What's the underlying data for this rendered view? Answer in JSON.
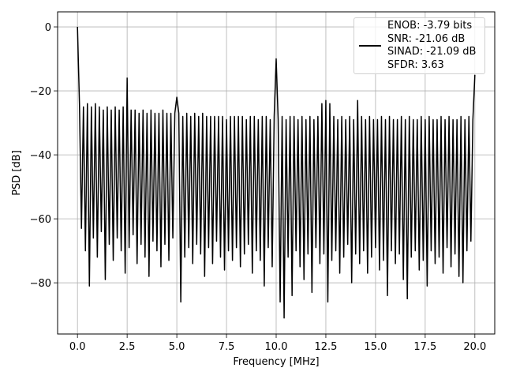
{
  "chart_data": {
    "type": "line",
    "xlabel": "Frequency [MHz]",
    "ylabel": "PSD [dB]",
    "xlim": [
      -1,
      21
    ],
    "ylim": [
      -96,
      4.7
    ],
    "xticks": [
      {
        "value": 0,
        "label": "0.0"
      },
      2.5,
      {
        "value": 5,
        "label": "5.0"
      },
      7.5,
      {
        "value": 10,
        "label": "10.0"
      },
      12.5,
      {
        "value": 15,
        "label": "15.0"
      },
      17.5,
      {
        "value": 20,
        "label": "20.0"
      }
    ],
    "yticks": [
      {
        "value": -80,
        "label": "−80"
      },
      {
        "value": -60,
        "label": "−60"
      },
      {
        "value": -40,
        "label": "−40"
      },
      {
        "value": -20,
        "label": "−20"
      },
      0
    ],
    "grid": true,
    "legend": "upper right",
    "x": [
      0,
      0.1,
      0.2,
      0.3,
      0.4,
      0.5,
      0.6,
      0.7,
      0.8,
      0.9,
      1,
      1.1,
      1.2,
      1.3,
      1.4,
      1.5,
      1.6,
      1.7,
      1.8,
      1.9,
      2,
      2.1,
      2.2,
      2.3,
      2.4,
      2.5,
      2.6,
      2.7,
      2.8,
      2.9,
      3,
      3.1,
      3.2,
      3.3,
      3.4,
      3.5,
      3.6,
      3.7,
      3.8,
      3.9,
      4,
      4.1,
      4.2,
      4.3,
      4.4,
      4.5,
      4.6,
      4.7,
      4.8,
      4.9,
      5,
      5.1,
      5.2,
      5.3,
      5.4,
      5.5,
      5.6,
      5.7,
      5.8,
      5.9,
      6,
      6.1,
      6.2,
      6.3,
      6.4,
      6.5,
      6.6,
      6.7,
      6.8,
      6.9,
      7,
      7.1,
      7.2,
      7.3,
      7.4,
      7.5,
      7.6,
      7.7,
      7.8,
      7.9,
      8,
      8.1,
      8.2,
      8.3,
      8.4,
      8.5,
      8.6,
      8.7,
      8.8,
      8.9,
      9,
      9.1,
      9.2,
      9.3,
      9.4,
      9.5,
      9.6,
      9.7,
      9.8,
      9.9,
      10,
      10.1,
      10.2,
      10.3,
      10.4,
      10.5,
      10.6,
      10.7,
      10.8,
      10.9,
      11,
      11.1,
      11.2,
      11.3,
      11.4,
      11.5,
      11.6,
      11.7,
      11.8,
      11.9,
      12,
      12.1,
      12.2,
      12.3,
      12.4,
      12.5,
      12.6,
      12.7,
      12.8,
      12.9,
      13,
      13.1,
      13.2,
      13.3,
      13.4,
      13.5,
      13.6,
      13.7,
      13.8,
      13.9,
      14,
      14.1,
      14.2,
      14.3,
      14.4,
      14.5,
      14.6,
      14.7,
      14.8,
      14.9,
      15,
      15.1,
      15.2,
      15.3,
      15.4,
      15.5,
      15.6,
      15.7,
      15.8,
      15.9,
      16,
      16.1,
      16.2,
      16.3,
      16.4,
      16.5,
      16.6,
      16.7,
      16.8,
      16.9,
      17,
      17.1,
      17.2,
      17.3,
      17.4,
      17.5,
      17.6,
      17.7,
      17.8,
      17.9,
      18,
      18.1,
      18.2,
      18.3,
      18.4,
      18.5,
      18.6,
      18.7,
      18.8,
      18.9,
      19,
      19.1,
      19.2,
      19.3,
      19.4,
      19.5,
      19.6,
      19.7,
      19.8,
      19.9,
      20
    ],
    "series": [
      {
        "name": "ENOB: -3.79 bits\nSNR: -21.06 dB\nSINAD: -21.09 dB\nSFDR: 3.63",
        "color": "#000000",
        "values": [
          0,
          -24,
          -63,
          -25,
          -70,
          -24,
          -81,
          -25,
          -66,
          -24,
          -72,
          -25,
          -64,
          -26,
          -79,
          -25,
          -68,
          -26,
          -73,
          -25,
          -66,
          -26,
          -70,
          -25,
          -77,
          -16,
          -69,
          -26,
          -65,
          -26,
          -74,
          -27,
          -68,
          -26,
          -72,
          -27,
          -78,
          -26,
          -67,
          -27,
          -70,
          -27,
          -75,
          -26,
          -68,
          -27,
          -73,
          -27,
          -66,
          -27,
          -22,
          -27,
          -86,
          -28,
          -72,
          -27,
          -69,
          -28,
          -74,
          -27,
          -68,
          -28,
          -71,
          -27,
          -78,
          -28,
          -69,
          -28,
          -74,
          -28,
          -67,
          -28,
          -72,
          -28,
          -76,
          -29,
          -70,
          -28,
          -73,
          -28,
          -69,
          -28,
          -75,
          -28,
          -71,
          -29,
          -68,
          -28,
          -77,
          -28,
          -70,
          -29,
          -73,
          -28,
          -81,
          -28,
          -69,
          -29,
          -75,
          -28,
          -10,
          -29,
          -86,
          -28,
          -91,
          -29,
          -72,
          -28,
          -84,
          -28,
          -70,
          -29,
          -75,
          -28,
          -79,
          -29,
          -71,
          -28,
          -83,
          -29,
          -69,
          -28,
          -74,
          -24,
          -71,
          -23,
          -86,
          -24,
          -73,
          -28,
          -70,
          -29,
          -77,
          -28,
          -72,
          -29,
          -68,
          -28,
          -80,
          -29,
          -71,
          -23,
          -74,
          -28,
          -70,
          -29,
          -77,
          -28,
          -72,
          -29,
          -69,
          -29,
          -76,
          -28,
          -73,
          -29,
          -84,
          -28,
          -70,
          -29,
          -74,
          -29,
          -71,
          -28,
          -79,
          -29,
          -85,
          -28,
          -72,
          -29,
          -70,
          -29,
          -76,
          -28,
          -73,
          -29,
          -81,
          -28,
          -70,
          -29,
          -74,
          -29,
          -72,
          -28,
          -77,
          -29,
          -69,
          -28,
          -75,
          -29,
          -71,
          -29,
          -78,
          -28,
          -80,
          -29,
          -70,
          -28,
          -67,
          -29,
          -15
        ]
      }
    ]
  }
}
